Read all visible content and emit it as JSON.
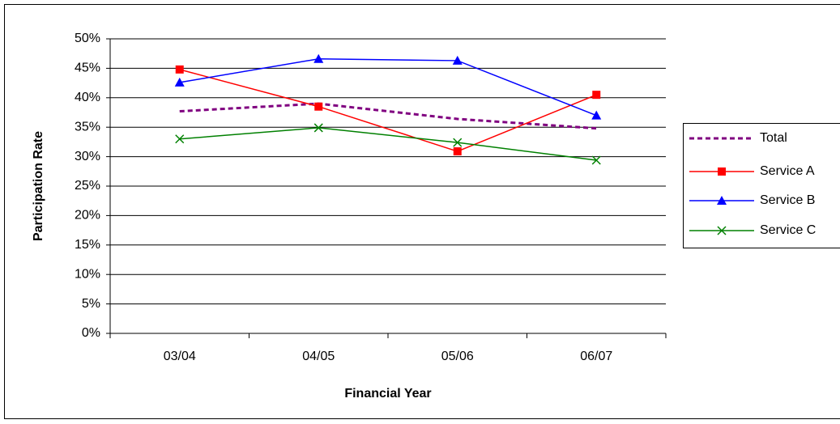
{
  "chart_data": {
    "type": "line",
    "x_label": "Financial Year",
    "y_label": "Participation Rate",
    "categories": [
      "03/04",
      "04/05",
      "05/06",
      "06/07"
    ],
    "series": [
      {
        "name": "Total",
        "color": "#800080",
        "dashed": true,
        "marker": "none",
        "values": [
          37.7,
          39.0,
          36.4,
          34.8
        ]
      },
      {
        "name": "Service A",
        "color": "#ff0000",
        "marker": "square",
        "values": [
          44.8,
          38.5,
          30.9,
          40.5
        ]
      },
      {
        "name": "Service B",
        "color": "#0000ff",
        "marker": "triangle",
        "values": [
          42.6,
          46.6,
          46.3,
          37.0
        ]
      },
      {
        "name": "Service C",
        "color": "#008000",
        "marker": "x",
        "values": [
          33.0,
          34.9,
          32.4,
          29.4
        ]
      }
    ],
    "ylim": [
      0,
      50
    ],
    "yticks": [
      {
        "value": 0,
        "label": "0%"
      },
      {
        "value": 5,
        "label": "5%"
      },
      {
        "value": 10,
        "label": "10%"
      },
      {
        "value": 15,
        "label": "15%"
      },
      {
        "value": 20,
        "label": "20%"
      },
      {
        "value": 25,
        "label": "25%"
      },
      {
        "value": 30,
        "label": "30%"
      },
      {
        "value": 35,
        "label": "35%"
      },
      {
        "value": 40,
        "label": "40%"
      },
      {
        "value": 45,
        "label": "45%"
      },
      {
        "value": 50,
        "label": "50%"
      }
    ],
    "grid": true,
    "legend": "right"
  }
}
